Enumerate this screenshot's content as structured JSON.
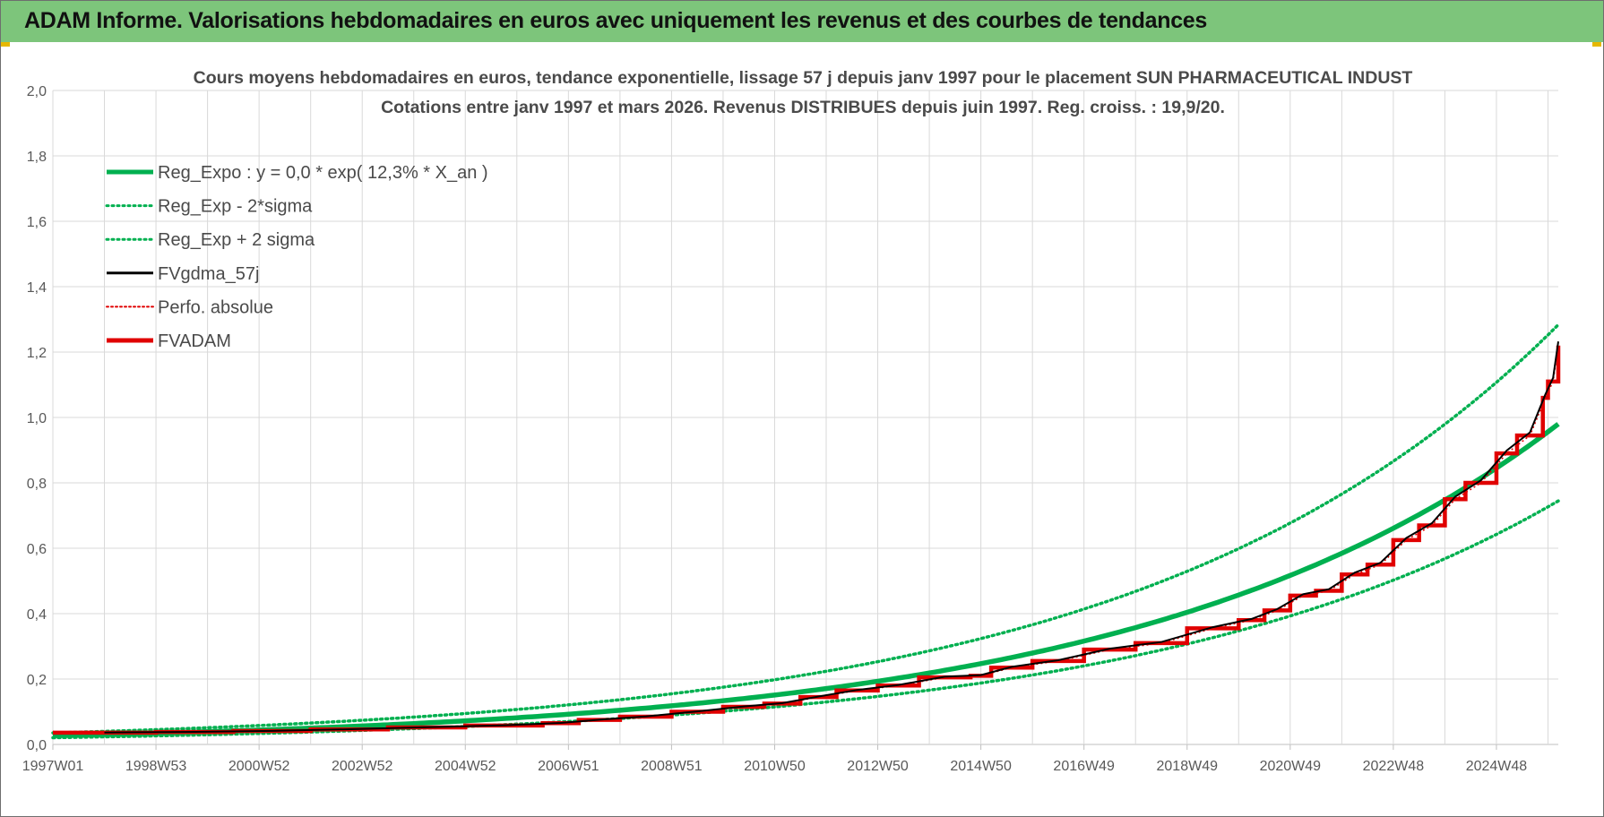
{
  "banner": {
    "title": "ADAM Informe. Valorisations hebdomadaires en euros avec uniquement les revenus et des courbes de tendances"
  },
  "colors": {
    "banner_bg": "#7dc57b",
    "trend_green": "#00b050",
    "smooth_black": "#000000",
    "adam_red": "#e00000",
    "grid": "#d9d9d9"
  },
  "chart_data": {
    "type": "line",
    "title_line1": "Cours moyens hebdomadaires en euros, tendance exponentielle, lissage 57 j depuis janv 1997 pour le placement SUN PHARMACEUTICAL INDUST",
    "title_line2": "Cotations entre janv 1997 et mars 2026. Revenus DISTRIBUES depuis juin 1997. Reg. croiss. : 19,9/20.",
    "x_tick_labels": [
      "1997W01",
      "1998W53",
      "2000W52",
      "2002W52",
      "2004W52",
      "2006W51",
      "2008W51",
      "2010W50",
      "2012W50",
      "2014W50",
      "2016W49",
      "2018W49",
      "2020W49",
      "2022W48",
      "2024W48"
    ],
    "y_tick_labels": [
      "0,0",
      "0,2",
      "0,4",
      "0,6",
      "0,8",
      "1,0",
      "1,2",
      "1,4",
      "1,6",
      "1,8",
      "2,0"
    ],
    "ylim": [
      0,
      2.0
    ],
    "xlim_years": [
      1997.0,
      2026.2
    ],
    "grid": true,
    "legend_placement": "top-left",
    "regression": {
      "growth_rate": 0.123,
      "start_value": 0.027,
      "sigma_factor_upper": 1.31,
      "sigma_factor_lower": 0.76
    },
    "series": [
      {
        "name": "Reg_Expo : y = 0,0 * exp( 12,3% *  X_an )",
        "style": "solid-thick",
        "color": "#00b050"
      },
      {
        "name": "Reg_Exp - 2*sigma",
        "style": "dotted",
        "color": "#00b050"
      },
      {
        "name": "Reg_Exp + 2 sigma",
        "style": "dotted",
        "color": "#00b050"
      },
      {
        "name": "FVgdma_57j",
        "style": "solid-thin",
        "color": "#000000"
      },
      {
        "name": "Perfo. absolue",
        "style": "dotted-thin",
        "color": "#e00000"
      },
      {
        "name": "FVADAM",
        "style": "solid-thick",
        "color": "#e00000"
      }
    ],
    "fvadam_steps": [
      {
        "x": 1997.0,
        "y": 0.036
      },
      {
        "x": 1999.0,
        "y": 0.038
      },
      {
        "x": 2000.5,
        "y": 0.041
      },
      {
        "x": 2002.0,
        "y": 0.046
      },
      {
        "x": 2003.5,
        "y": 0.052
      },
      {
        "x": 2005.0,
        "y": 0.058
      },
      {
        "x": 2006.5,
        "y": 0.065
      },
      {
        "x": 2007.2,
        "y": 0.075
      },
      {
        "x": 2008.0,
        "y": 0.085
      },
      {
        "x": 2009.0,
        "y": 0.1
      },
      {
        "x": 2010.0,
        "y": 0.115
      },
      {
        "x": 2010.8,
        "y": 0.125
      },
      {
        "x": 2011.5,
        "y": 0.145
      },
      {
        "x": 2012.2,
        "y": 0.165
      },
      {
        "x": 2013.0,
        "y": 0.18
      },
      {
        "x": 2013.8,
        "y": 0.205
      },
      {
        "x": 2014.8,
        "y": 0.21
      },
      {
        "x": 2015.2,
        "y": 0.235
      },
      {
        "x": 2016.0,
        "y": 0.255
      },
      {
        "x": 2017.0,
        "y": 0.29
      },
      {
        "x": 2018.0,
        "y": 0.31
      },
      {
        "x": 2019.0,
        "y": 0.355
      },
      {
        "x": 2020.0,
        "y": 0.38
      },
      {
        "x": 2020.5,
        "y": 0.41
      },
      {
        "x": 2021.0,
        "y": 0.455
      },
      {
        "x": 2021.5,
        "y": 0.47
      },
      {
        "x": 2022.0,
        "y": 0.52
      },
      {
        "x": 2022.5,
        "y": 0.55
      },
      {
        "x": 2023.0,
        "y": 0.625
      },
      {
        "x": 2023.5,
        "y": 0.67
      },
      {
        "x": 2024.0,
        "y": 0.75
      },
      {
        "x": 2024.4,
        "y": 0.8
      },
      {
        "x": 2025.0,
        "y": 0.89
      },
      {
        "x": 2025.4,
        "y": 0.945
      },
      {
        "x": 2025.9,
        "y": 1.06
      },
      {
        "x": 2026.0,
        "y": 1.11
      },
      {
        "x": 2026.2,
        "y": 1.22
      }
    ]
  }
}
